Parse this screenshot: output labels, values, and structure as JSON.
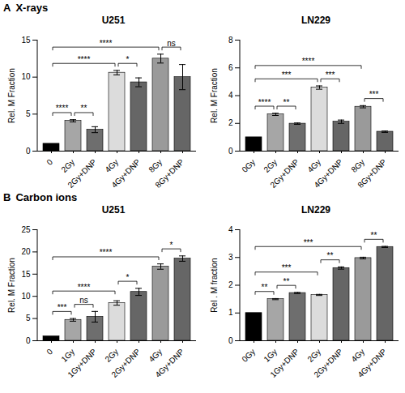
{
  "sections": [
    {
      "label": "A",
      "title": "X-rays"
    },
    {
      "label": "B",
      "title": "Carbon ions"
    }
  ],
  "chart_data": [
    {
      "type": "bar",
      "title": "U251",
      "y_label": "Rel. M Fraction",
      "categories": [
        "0",
        "2Gy",
        "2Gy+DNP",
        "4Gy",
        "4Gy+DNP",
        "8Gy",
        "8Gy+DNP"
      ],
      "values": [
        1,
        4.1,
        2.9,
        10.6,
        9.3,
        12.5,
        10.0
      ],
      "errors": [
        0,
        0.15,
        0.4,
        0.3,
        0.6,
        0.6,
        1.7
      ],
      "colors": [
        "#000000",
        "#a6a6a6",
        "#6e6e6e",
        "#dcdcdc",
        "#666666",
        "#9a9a9a",
        "#666666"
      ],
      "ylim": [
        0,
        15
      ],
      "yticks": [
        0,
        5,
        10,
        15
      ],
      "comparisons": [
        {
          "from": "0",
          "to": "2Gy",
          "label": "****"
        },
        {
          "from": "2Gy",
          "to": "2Gy+DNP",
          "label": "**"
        },
        {
          "from": "0",
          "to": "4Gy",
          "label": "****"
        },
        {
          "from": "4Gy",
          "to": "4Gy+DNP",
          "label": "*"
        },
        {
          "from": "0",
          "to": "8Gy",
          "label": "****"
        },
        {
          "from": "8Gy",
          "to": "8Gy+DNP",
          "label": "ns"
        }
      ]
    },
    {
      "type": "bar",
      "title": "LN229",
      "y_label": "Rel. M Fraction",
      "categories": [
        "0Gy",
        "2Gy",
        "2Gy+DNP",
        "4Gy",
        "4Gy+DNP",
        "8Gy",
        "8Gy+DNP"
      ],
      "values": [
        1,
        2.65,
        1.98,
        4.58,
        2.12,
        3.2,
        1.4
      ],
      "errors": [
        0,
        0.08,
        0.05,
        0.12,
        0.12,
        0.08,
        0.05
      ],
      "colors": [
        "#000000",
        "#a6a6a6",
        "#6e6e6e",
        "#dcdcdc",
        "#666666",
        "#9a9a9a",
        "#666666"
      ],
      "ylim": [
        0,
        8
      ],
      "yticks": [
        0,
        2,
        4,
        6,
        8
      ],
      "comparisons": [
        {
          "from": "0Gy",
          "to": "2Gy",
          "label": "****"
        },
        {
          "from": "2Gy",
          "to": "2Gy+DNP",
          "label": "**"
        },
        {
          "from": "0Gy",
          "to": "4Gy",
          "label": "***"
        },
        {
          "from": "4Gy",
          "to": "4Gy+DNP",
          "label": "***"
        },
        {
          "from": "0Gy",
          "to": "8Gy",
          "label": "****"
        },
        {
          "from": "8Gy",
          "to": "8Gy+DNP",
          "label": "***"
        }
      ]
    },
    {
      "type": "bar",
      "title": "U251",
      "y_label": "Rel. M Fraction",
      "categories": [
        "0",
        "1Gy",
        "1Gy+DNP",
        "2Gy",
        "2Gy+DNP",
        "4Gy",
        "4Gy+DNP"
      ],
      "values": [
        1,
        4.7,
        5.4,
        8.5,
        11.0,
        16.7,
        18.5
      ],
      "errors": [
        0,
        0.3,
        1.2,
        0.5,
        0.8,
        0.6,
        0.6
      ],
      "colors": [
        "#000000",
        "#a6a6a6",
        "#6e6e6e",
        "#dcdcdc",
        "#666666",
        "#9a9a9a",
        "#666666"
      ],
      "ylim": [
        0,
        25
      ],
      "yticks": [
        0,
        5,
        10,
        15,
        20,
        25
      ],
      "comparisons": [
        {
          "from": "0",
          "to": "1Gy",
          "label": "***"
        },
        {
          "from": "1Gy",
          "to": "1Gy+DNP",
          "label": "ns"
        },
        {
          "from": "0",
          "to": "2Gy",
          "label": "****"
        },
        {
          "from": "2Gy",
          "to": "2Gy+DNP",
          "label": "*"
        },
        {
          "from": "0",
          "to": "4Gy",
          "label": "****"
        },
        {
          "from": "4Gy",
          "to": "4Gy+DNP",
          "label": "*"
        }
      ]
    },
    {
      "type": "bar",
      "title": "LN229",
      "y_label": "Rel . M fraction",
      "categories": [
        "0Gy",
        "1Gy",
        "1Gy+DNP",
        "2Gy",
        "2Gy+DNP",
        "4Gy",
        "4Gy+DNP"
      ],
      "values": [
        1,
        1.5,
        1.72,
        1.65,
        2.62,
        2.98,
        3.38
      ],
      "errors": [
        0,
        0.02,
        0.02,
        0.02,
        0.04,
        0.03,
        0.02
      ],
      "colors": [
        "#000000",
        "#a6a6a6",
        "#6e6e6e",
        "#dcdcdc",
        "#666666",
        "#9a9a9a",
        "#666666"
      ],
      "ylim": [
        0,
        4
      ],
      "yticks": [
        0,
        1,
        2,
        3,
        4
      ],
      "comparisons": [
        {
          "from": "0Gy",
          "to": "1Gy",
          "label": "**"
        },
        {
          "from": "1Gy",
          "to": "1Gy+DNP",
          "label": "**"
        },
        {
          "from": "0Gy",
          "to": "2Gy",
          "label": "***"
        },
        {
          "from": "2Gy",
          "to": "2Gy+DNP",
          "label": "**"
        },
        {
          "from": "0Gy",
          "to": "4Gy",
          "label": "***"
        },
        {
          "from": "4Gy",
          "to": "4Gy+DNP",
          "label": "**"
        }
      ]
    }
  ]
}
